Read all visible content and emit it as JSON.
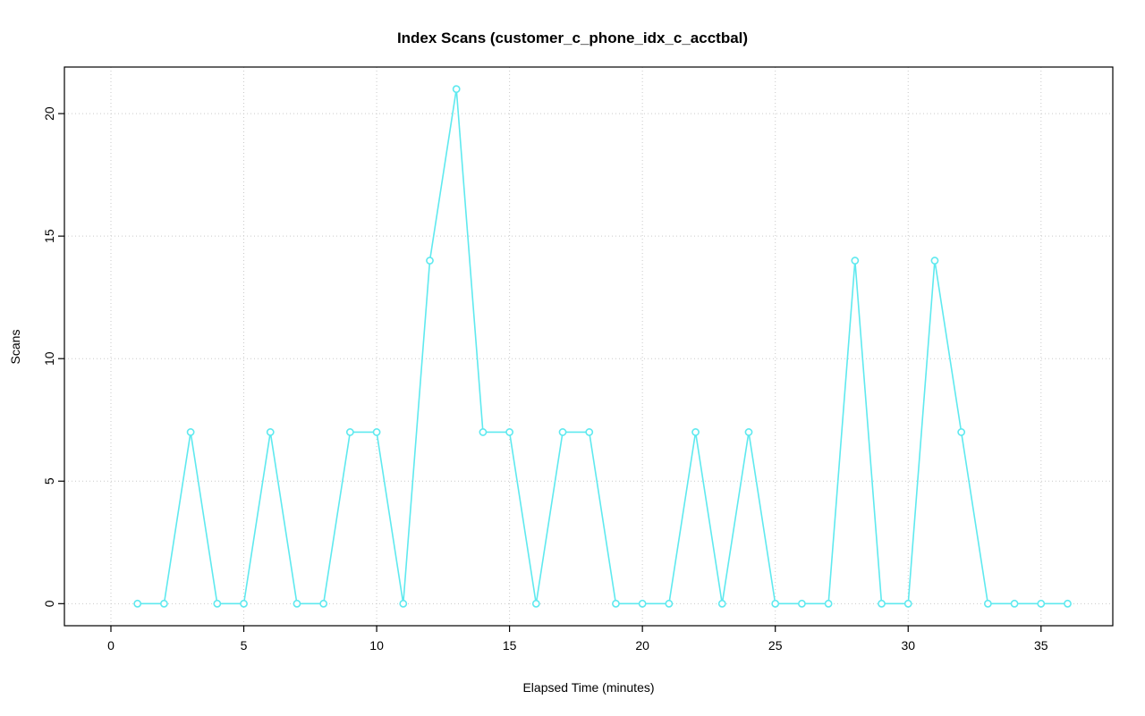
{
  "chart_data": {
    "type": "line",
    "title": "Index Scans (customer_c_phone_idx_c_acctbal)",
    "xlabel": "Elapsed Time (minutes)",
    "ylabel": "Scans",
    "x": [
      1,
      2,
      3,
      4,
      5,
      6,
      7,
      8,
      9,
      10,
      11,
      12,
      13,
      14,
      15,
      16,
      17,
      18,
      19,
      20,
      21,
      22,
      23,
      24,
      25,
      26,
      27,
      28,
      29,
      30,
      31,
      32,
      33,
      34,
      35,
      36
    ],
    "values": [
      0,
      0,
      7,
      0,
      0,
      7,
      0,
      0,
      7,
      7,
      0,
      14,
      21,
      7,
      7,
      0,
      7,
      7,
      0,
      0,
      0,
      7,
      0,
      7,
      0,
      0,
      0,
      14,
      0,
      0,
      14,
      7,
      0,
      0,
      0,
      0
    ],
    "xticks": [
      0,
      5,
      10,
      15,
      20,
      25,
      30,
      35
    ],
    "yticks": [
      0,
      5,
      10,
      15,
      20
    ],
    "xlim": [
      -1.75,
      37.7
    ],
    "ylim": [
      -0.9,
      21.9
    ],
    "grid": true,
    "legend": "none",
    "marker": "open-circle",
    "line_color": "#5fe9ef",
    "grid_color": "#c9c9c9",
    "frame_color": "#000000"
  }
}
